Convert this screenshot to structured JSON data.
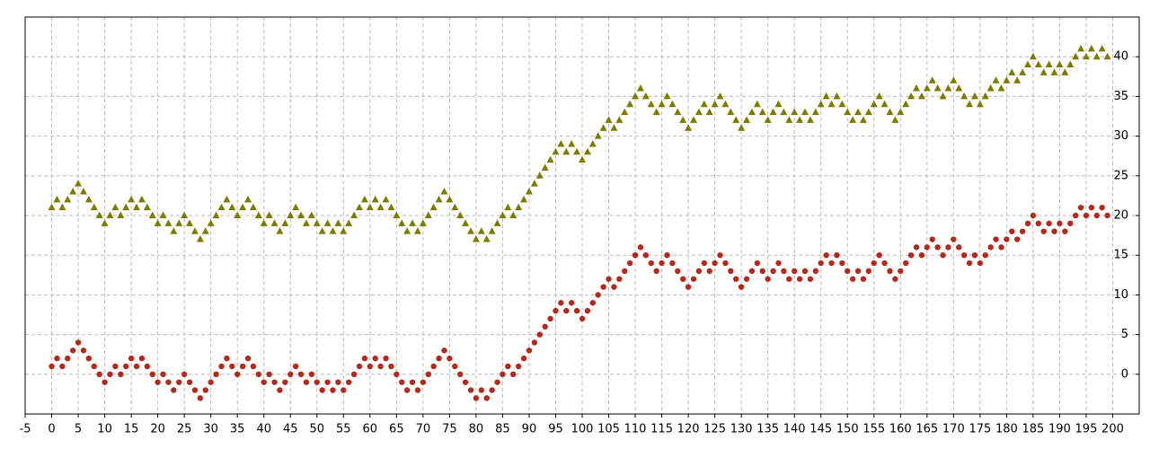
{
  "chart_data": {
    "type": "scatter",
    "x": [
      0,
      1,
      2,
      3,
      4,
      5,
      6,
      7,
      8,
      9,
      10,
      11,
      12,
      13,
      14,
      15,
      16,
      17,
      18,
      19,
      20,
      21,
      22,
      23,
      24,
      25,
      26,
      27,
      28,
      29,
      30,
      31,
      32,
      33,
      34,
      35,
      36,
      37,
      38,
      39,
      40,
      41,
      42,
      43,
      44,
      45,
      46,
      47,
      48,
      49,
      50,
      51,
      52,
      53,
      54,
      55,
      56,
      57,
      58,
      59,
      60,
      61,
      62,
      63,
      64,
      65,
      66,
      67,
      68,
      69,
      70,
      71,
      72,
      73,
      74,
      75,
      76,
      77,
      78,
      79,
      80,
      81,
      82,
      83,
      84,
      85,
      86,
      87,
      88,
      89,
      90,
      91,
      92,
      93,
      94,
      95,
      96,
      97,
      98,
      99,
      100,
      101,
      102,
      103,
      104,
      105,
      106,
      107,
      108,
      109,
      110,
      111,
      112,
      113,
      114,
      115,
      116,
      117,
      118,
      119,
      120,
      121,
      122,
      123,
      124,
      125,
      126,
      127,
      128,
      129,
      130,
      131,
      132,
      133,
      134,
      135,
      136,
      137,
      138,
      139,
      140,
      141,
      142,
      143,
      144,
      145,
      146,
      147,
      148,
      149,
      150,
      151,
      152,
      153,
      154,
      155,
      156,
      157,
      158,
      159,
      160,
      161,
      162,
      163,
      164,
      165,
      166,
      167,
      168,
      169,
      170,
      171,
      172,
      173,
      174,
      175,
      176,
      177,
      178,
      179,
      180,
      181,
      182,
      183,
      184,
      185,
      186,
      187,
      188,
      189,
      190,
      191,
      192,
      193,
      194,
      195,
      196,
      197,
      198,
      199
    ],
    "series": [
      {
        "color": "#b8281a",
        "marker": "circle",
        "values": [
          1,
          2,
          1,
          2,
          3,
          4,
          3,
          2,
          1,
          0,
          -1,
          0,
          1,
          0,
          1,
          2,
          1,
          2,
          1,
          0,
          -1,
          0,
          -1,
          -2,
          -1,
          0,
          -1,
          -2,
          -3,
          -2,
          -1,
          0,
          1,
          2,
          1,
          0,
          1,
          2,
          1,
          0,
          -1,
          0,
          -1,
          -2,
          -1,
          0,
          1,
          0,
          -1,
          0,
          -1,
          -2,
          -1,
          -2,
          -1,
          -2,
          -1,
          0,
          1,
          2,
          1,
          2,
          1,
          2,
          1,
          0,
          -1,
          -2,
          -1,
          -2,
          -1,
          0,
          1,
          2,
          3,
          2,
          1,
          0,
          -1,
          -2,
          -3,
          -2,
          -3,
          -2,
          -1,
          0,
          1,
          0,
          1,
          2,
          3,
          4,
          5,
          6,
          7,
          8,
          9,
          8,
          9,
          8,
          7,
          8,
          9,
          10,
          11,
          12,
          11,
          12,
          13,
          14,
          15,
          16,
          15,
          14,
          13,
          14,
          15,
          14,
          13,
          12,
          11,
          12,
          13,
          14,
          13,
          14,
          15,
          14,
          13,
          12,
          11,
          12,
          13,
          14,
          13,
          12,
          13,
          14,
          13,
          12,
          13,
          12,
          13,
          12,
          13,
          14,
          15,
          14,
          15,
          14,
          13,
          12,
          13,
          12,
          13,
          14,
          15,
          14,
          13,
          12,
          13,
          14,
          15,
          16,
          15,
          16,
          17,
          16,
          15,
          16,
          17,
          16,
          15,
          14,
          15,
          14,
          15,
          16,
          17,
          16,
          17,
          18,
          17,
          18,
          19,
          20,
          19,
          18,
          19,
          18,
          19,
          18,
          19,
          20,
          21,
          20,
          21,
          20,
          21,
          20
        ]
      },
      {
        "color": "#7f7a00",
        "marker": "triangle",
        "values": [
          21,
          22,
          21,
          22,
          23,
          24,
          23,
          22,
          21,
          20,
          19,
          20,
          21,
          20,
          21,
          22,
          21,
          22,
          21,
          20,
          19,
          20,
          19,
          18,
          19,
          20,
          19,
          18,
          17,
          18,
          19,
          20,
          21,
          22,
          21,
          20,
          21,
          22,
          21,
          20,
          19,
          20,
          19,
          18,
          19,
          20,
          21,
          20,
          19,
          20,
          19,
          18,
          19,
          18,
          19,
          18,
          19,
          20,
          21,
          22,
          21,
          22,
          21,
          22,
          21,
          20,
          19,
          18,
          19,
          18,
          19,
          20,
          21,
          22,
          23,
          22,
          21,
          20,
          19,
          18,
          17,
          18,
          17,
          18,
          19,
          20,
          21,
          20,
          21,
          22,
          23,
          24,
          25,
          26,
          27,
          28,
          29,
          28,
          29,
          28,
          27,
          28,
          29,
          30,
          31,
          32,
          31,
          32,
          33,
          34,
          35,
          36,
          35,
          34,
          33,
          34,
          35,
          34,
          33,
          32,
          31,
          32,
          33,
          34,
          33,
          34,
          35,
          34,
          33,
          32,
          31,
          32,
          33,
          34,
          33,
          32,
          33,
          34,
          33,
          32,
          33,
          32,
          33,
          32,
          33,
          34,
          35,
          34,
          35,
          34,
          33,
          32,
          33,
          32,
          33,
          34,
          35,
          34,
          33,
          32,
          33,
          34,
          35,
          36,
          35,
          36,
          37,
          36,
          35,
          36,
          37,
          36,
          35,
          34,
          35,
          34,
          35,
          36,
          37,
          36,
          37,
          38,
          37,
          38,
          39,
          40,
          39,
          38,
          39,
          38,
          39,
          38,
          39,
          40,
          41,
          40,
          41,
          40,
          41,
          40
        ]
      }
    ],
    "xlim": [
      -5,
      205
    ],
    "ylim": [
      -5,
      45
    ],
    "xticks": [
      -5,
      0,
      5,
      10,
      15,
      20,
      25,
      30,
      35,
      40,
      45,
      50,
      55,
      60,
      65,
      70,
      75,
      80,
      85,
      90,
      95,
      100,
      105,
      110,
      115,
      120,
      125,
      130,
      135,
      140,
      145,
      150,
      155,
      160,
      165,
      170,
      175,
      180,
      185,
      190,
      195,
      200
    ],
    "yticks": [
      0,
      5,
      10,
      15,
      20,
      25,
      30,
      35,
      40
    ],
    "grid": true
  }
}
